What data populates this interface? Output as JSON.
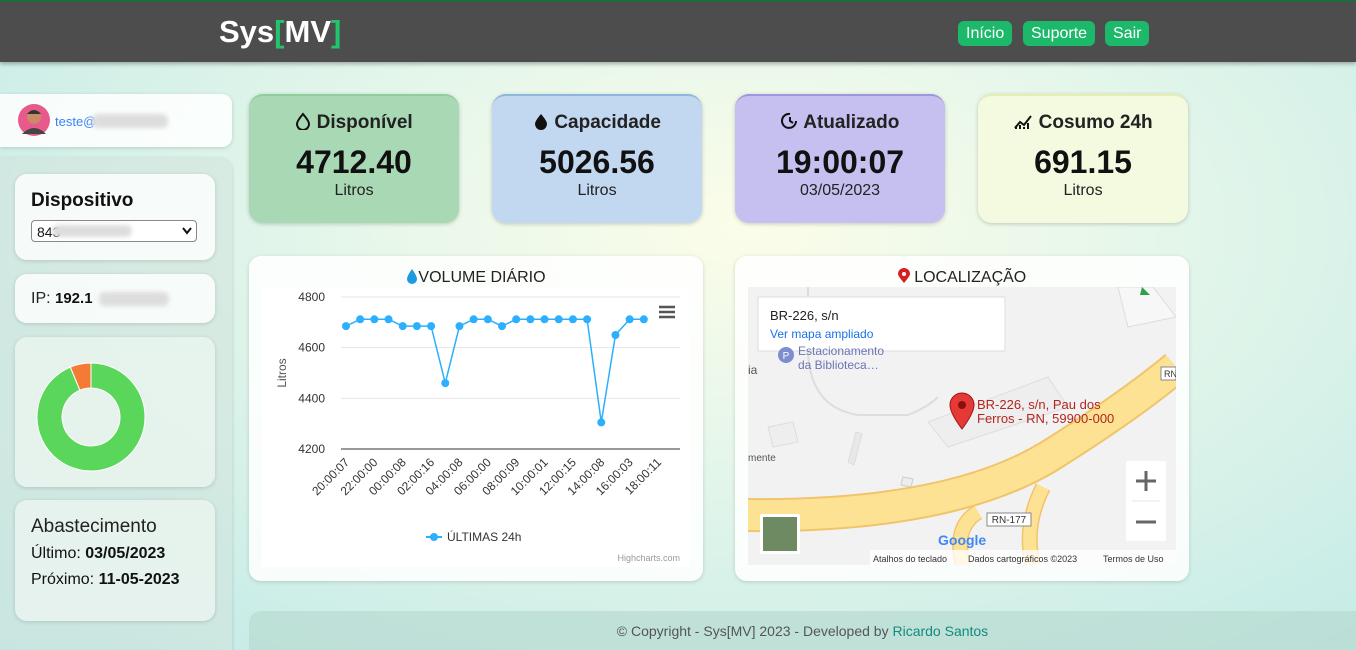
{
  "header": {
    "brand": {
      "prefix": "Sys",
      "open": "[",
      "name": "MV",
      "close": "]"
    },
    "nav": [
      "Início",
      "Suporte",
      "Sair"
    ]
  },
  "sidebar": {
    "user": "teste@",
    "device": {
      "label": "Dispositivo",
      "selected": "843"
    },
    "ip": {
      "label": "IP:",
      "value": "192.1"
    },
    "donut": {
      "type": "pie",
      "values": [
        93.75,
        6.25
      ],
      "colors": [
        "#5ad65a",
        "#f47b35"
      ]
    },
    "supply": {
      "title": "Abastecimento",
      "last_label": "Último:",
      "last": "03/05/2023",
      "next_label": "Próximo:",
      "next": "11-05-2023"
    }
  },
  "cards": [
    {
      "title": "Disponível",
      "value": "4712.40",
      "unit": "Litros"
    },
    {
      "title": "Capacidade",
      "value": "5026.56",
      "unit": "Litros"
    },
    {
      "title": "Atualizado",
      "value": "19:00:07",
      "unit": "03/05/2023"
    },
    {
      "title": "Cosumo 24h",
      "value": "691.15",
      "unit": "Litros"
    }
  ],
  "chart_data": {
    "type": "line",
    "title": "VOLUME DIÁRIO",
    "y_label": "Litros",
    "categories": [
      "20:00:07",
      null,
      "22:00:00",
      null,
      "00:00:08",
      null,
      "02:00:16",
      null,
      "04:00:08",
      null,
      "06:00:00",
      null,
      "08:00:09",
      null,
      "10:00:01",
      null,
      "12:00:15",
      null,
      "14:00:08",
      null,
      "16:00:03",
      null,
      "18:00:11"
    ],
    "series": [
      {
        "name": "ÚLTIMAS 24h",
        "color": "#2caffe",
        "values": [
          4685,
          4712,
          4712,
          4712,
          4685,
          4685,
          4685,
          4460,
          4685,
          4712,
          4712,
          4685,
          4712,
          4712,
          4712,
          4712,
          4712,
          4712,
          4305,
          4650,
          4712,
          4712,
          null
        ]
      }
    ],
    "ylim": [
      4200,
      4800
    ],
    "yticks": [
      4200,
      4400,
      4600,
      4800
    ],
    "grid": true,
    "credit": "Highcharts.com"
  },
  "map": {
    "title": "LOCALIZAÇÃO",
    "info_title": "BR-226, s/n",
    "info_link": "Ver mapa ampliado",
    "place": [
      "Estacionamento",
      "da Biblioteca…"
    ],
    "marker": [
      "BR-226, s/n, Pau dos",
      "Ferros - RN, 59900-000"
    ],
    "fragments": [
      "ia",
      "mente"
    ],
    "roads": [
      "RN-177",
      "RN"
    ],
    "logo": "Google",
    "attribution": [
      "Atalhos do teclado",
      "Dados cartográficos ©2023",
      "Termos de Uso"
    ]
  },
  "footer": {
    "text": "© Copyright - Sys[MV] 2023 - Developed by",
    "author": "Ricardo Santos"
  }
}
